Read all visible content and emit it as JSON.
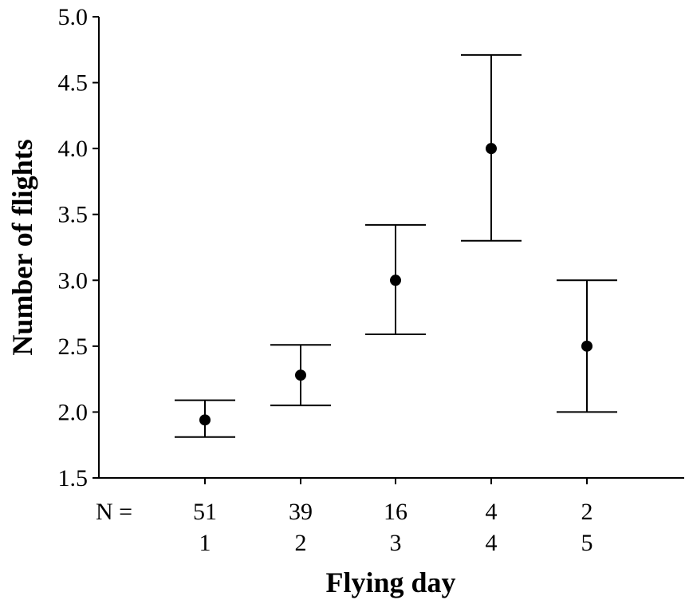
{
  "chart_data": {
    "type": "scatter",
    "xlabel": "Flying day",
    "ylabel": "Number of flights",
    "ylim": [
      1.5,
      5.0
    ],
    "yticks": [
      "1.5",
      "2.0",
      "2.5",
      "3.0",
      "3.5",
      "4.0",
      "4.5",
      "5.0"
    ],
    "n_label": "N =",
    "categories": [
      "1",
      "2",
      "3",
      "4",
      "5"
    ],
    "n_values": [
      "51",
      "39",
      "16",
      "4",
      "2"
    ],
    "points": [
      {
        "day": "1",
        "mean": 1.94,
        "lower": 1.81,
        "upper": 2.09
      },
      {
        "day": "2",
        "mean": 2.28,
        "lower": 2.05,
        "upper": 2.51
      },
      {
        "day": "3",
        "mean": 3.0,
        "lower": 2.59,
        "upper": 3.42
      },
      {
        "day": "4",
        "mean": 4.0,
        "lower": 3.3,
        "upper": 4.71
      },
      {
        "day": "5",
        "mean": 2.5,
        "lower": 2.0,
        "upper": 3.0
      }
    ],
    "grid": false,
    "legend": "none",
    "error_bar_color": "#000000",
    "marker_color": "#000000"
  }
}
